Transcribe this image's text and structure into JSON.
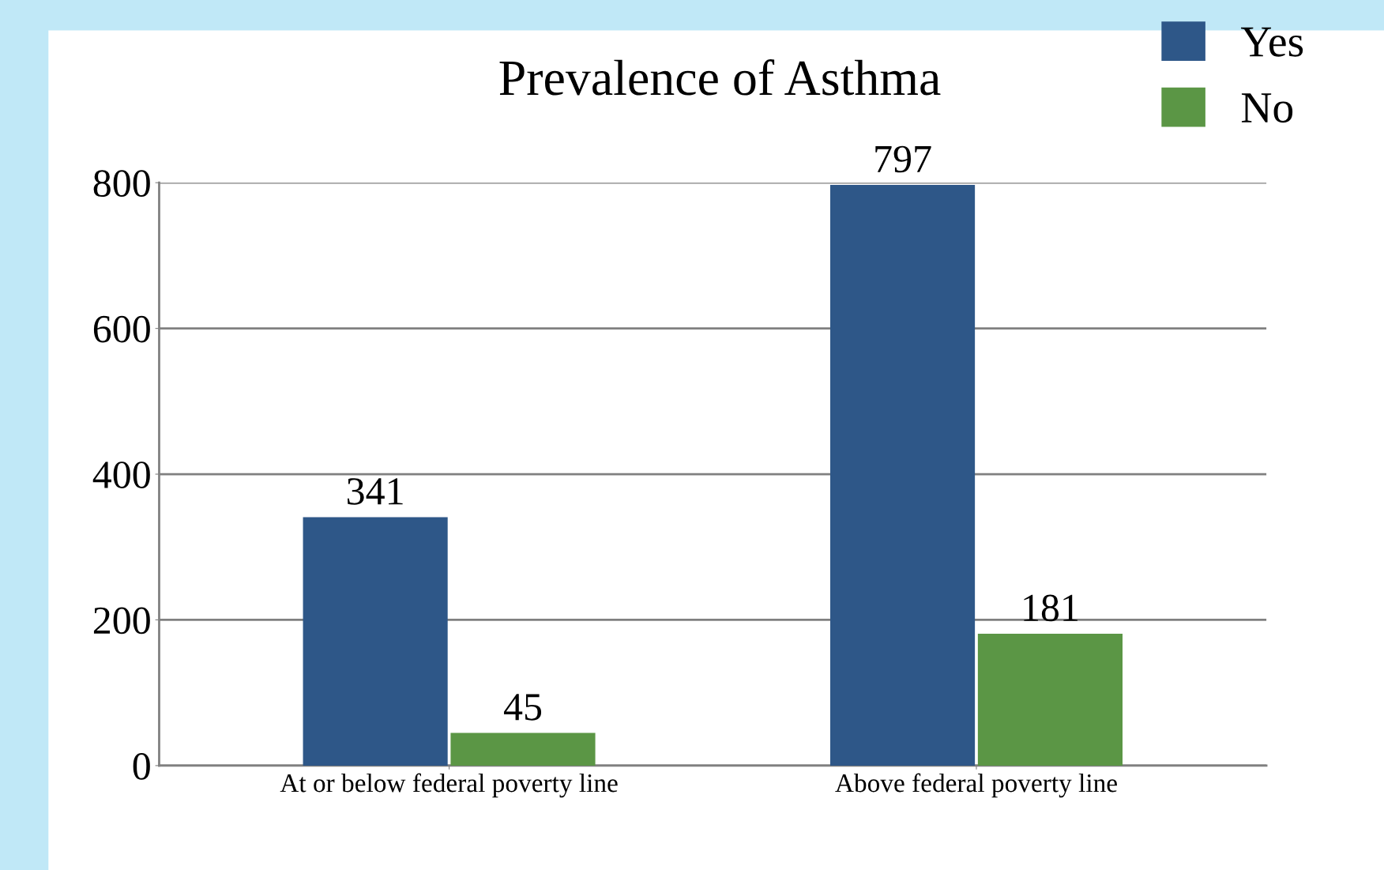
{
  "chart_data": {
    "type": "bar",
    "title": "Prevalence of Asthma",
    "categories": [
      "At or below federal poverty line",
      "Above federal poverty line"
    ],
    "series": [
      {
        "name": "Yes",
        "color": "#2e5788",
        "values": [
          341,
          797
        ]
      },
      {
        "name": "No",
        "color": "#5b9645",
        "values": [
          45,
          181
        ]
      }
    ],
    "ylim": [
      0,
      800
    ],
    "yticks": [
      0,
      200,
      400,
      600,
      800
    ],
    "grid": "y",
    "legend": "top right",
    "data_labels": true
  }
}
